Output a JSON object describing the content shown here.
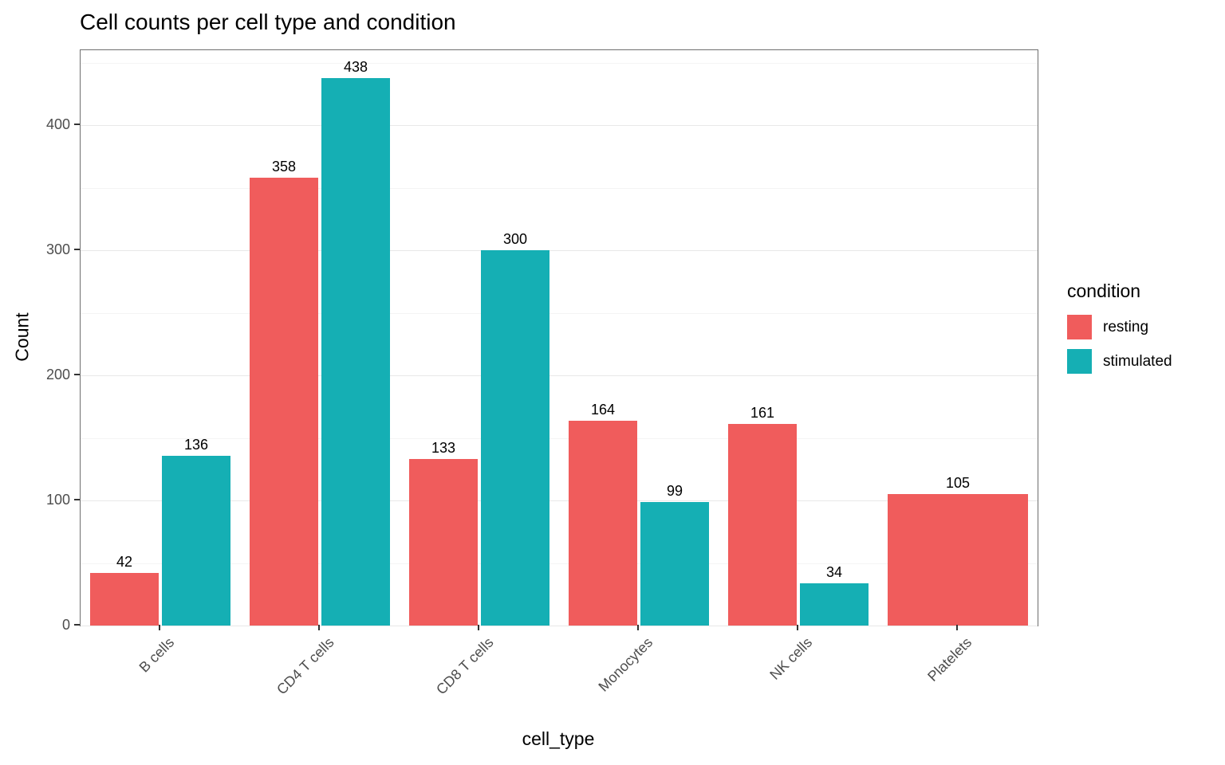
{
  "chart_data": {
    "type": "bar",
    "title": "Cell counts per cell type and condition",
    "xlabel": "cell_type",
    "ylabel": "Count",
    "legend_title": "condition",
    "legend_position": "right",
    "grid": true,
    "categories": [
      "B cells",
      "CD4 T cells",
      "CD8 T cells",
      "Monocytes",
      "NK cells",
      "Platelets"
    ],
    "series": [
      {
        "name": "resting",
        "color": "#F05C5C",
        "values": [
          42,
          358,
          133,
          164,
          161,
          105
        ]
      },
      {
        "name": "stimulated",
        "color": "#15AFB4",
        "values": [
          136,
          438,
          300,
          99,
          34,
          null
        ]
      }
    ],
    "ylim": [
      0,
      460
    ],
    "yticks": [
      0,
      100,
      200,
      300,
      400
    ],
    "yticks_minor": [
      50,
      150,
      250,
      350,
      450
    ]
  }
}
